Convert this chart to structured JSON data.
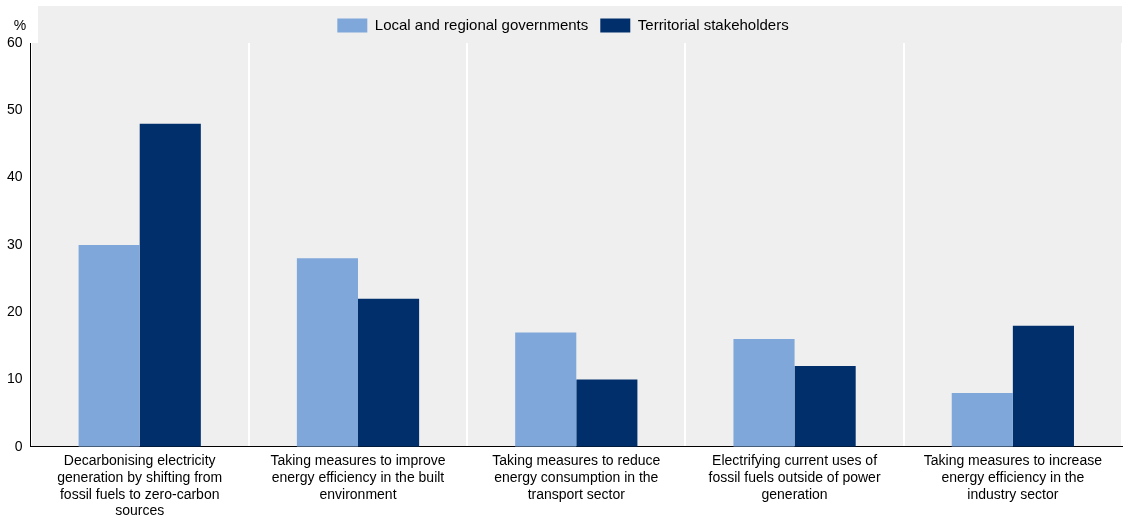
{
  "chart_data": {
    "type": "bar",
    "ylabel": "%",
    "categories": [
      "Decarbonising electricity generation by shifting from fossil fuels to zero-carbon sources",
      "Taking measures to improve energy efficiency in the built environment",
      "Taking measures to reduce energy consumption in the transport sector",
      "Electrifying current uses of fossil fuels outside of power generation",
      "Taking measures to increase energy efficiency in the industry sector"
    ],
    "series": [
      {
        "name": "Local and regional governments",
        "color": "#7fa7d9",
        "values": [
          30,
          28,
          17,
          16,
          8
        ]
      },
      {
        "name": "Territorial stakeholders",
        "color": "#002f6c",
        "values": [
          48,
          22,
          10,
          12,
          18
        ]
      }
    ],
    "ylim": [
      0,
      60
    ],
    "yticks": [
      0,
      10,
      20,
      30,
      40,
      50,
      60
    ],
    "grid": "x",
    "legend": "top"
  }
}
